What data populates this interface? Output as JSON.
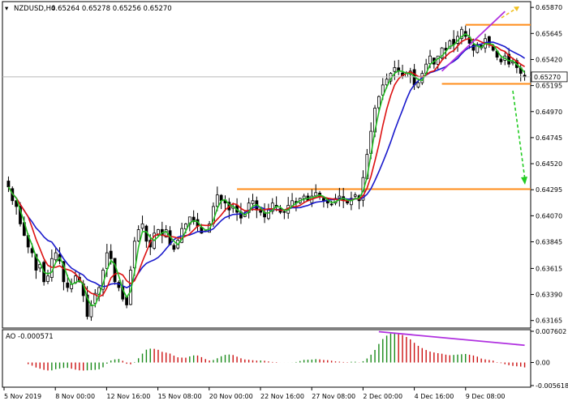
{
  "chart_data": {
    "type": "candlestick",
    "symbol_header": "NZDUSD,H4",
    "header_values": "0.65264 0.65278 0.65256 0.65270",
    "price_axis": {
      "ticks": [
        "0.65870",
        "0.65645",
        "0.65420",
        "0.65195",
        "0.64970",
        "0.64745",
        "0.64520",
        "0.64295",
        "0.64070",
        "0.63845",
        "0.63615",
        "0.63390",
        "0.63165"
      ],
      "range": [
        0.631,
        0.6592
      ],
      "current_price": 0.6527,
      "current_label": "0.65270"
    },
    "time_axis": {
      "ticks": [
        "5 Nov 2019",
        "8 Nov 00:00",
        "12 Nov 16:00",
        "15 Nov 08:00",
        "20 Nov 00:00",
        "22 Nov 16:00",
        "27 Nov 08:00",
        "2 Dec 00:00",
        "4 Dec 16:00",
        "9 Dec 08:00"
      ]
    },
    "levels": [
      {
        "name": "resistance",
        "price": 0.6572,
        "color": "#ff8c1a"
      },
      {
        "name": "support-upper",
        "price": 0.6521,
        "color": "#ff8c1a"
      },
      {
        "name": "support-lower",
        "price": 0.643,
        "color": "#ff8c1a"
      }
    ],
    "closes": [
      0.6432,
      0.642,
      0.6415,
      0.64,
      0.639,
      0.638,
      0.6375,
      0.636,
      0.6365,
      0.635,
      0.6355,
      0.637,
      0.6375,
      0.6368,
      0.635,
      0.6345,
      0.6348,
      0.6355,
      0.635,
      0.6338,
      0.632,
      0.633,
      0.634,
      0.6345,
      0.636,
      0.6375,
      0.637,
      0.635,
      0.6345,
      0.6335,
      0.633,
      0.636,
      0.6385,
      0.6395,
      0.64,
      0.6385,
      0.638,
      0.6392,
      0.6395,
      0.639,
      0.6395,
      0.6382,
      0.6378,
      0.6386,
      0.6396,
      0.64,
      0.6406,
      0.6402,
      0.6398,
      0.6392,
      0.6394,
      0.64,
      0.6415,
      0.6425,
      0.642,
      0.6418,
      0.6412,
      0.6415,
      0.641,
      0.6405,
      0.6408,
      0.6418,
      0.642,
      0.6412,
      0.641,
      0.6406,
      0.6412,
      0.6418,
      0.6415,
      0.641,
      0.641,
      0.6416,
      0.642,
      0.6418,
      0.6422,
      0.6424,
      0.642,
      0.6424,
      0.6427,
      0.6424,
      0.642,
      0.6418,
      0.6417,
      0.6422,
      0.6424,
      0.642,
      0.6418,
      0.6422,
      0.6425,
      0.642,
      0.644,
      0.646,
      0.648,
      0.65,
      0.651,
      0.652,
      0.6525,
      0.653,
      0.6535,
      0.6532,
      0.6528,
      0.653,
      0.6532,
      0.652,
      0.6522,
      0.653,
      0.6538,
      0.6545,
      0.6538,
      0.6545,
      0.6552,
      0.655,
      0.6558,
      0.6555,
      0.6562,
      0.6568,
      0.6562,
      0.6556,
      0.655,
      0.6555,
      0.6552,
      0.656,
      0.6555,
      0.655,
      0.6544,
      0.654,
      0.6545,
      0.6538,
      0.654,
      0.6535,
      0.653,
      0.6527
    ],
    "indicator_colors": {
      "fast_ma": "#22bb22",
      "slow_ma": "#dd1111",
      "baseline": "#1a1acc",
      "divergence": "#b030e0",
      "arrow_up": "#f0c020",
      "arrow_down": "#22cc22",
      "level": "#ff8c1a"
    },
    "oscillator": {
      "label": "AO -0.000571",
      "ticks": [
        "0.007602",
        "0.00",
        "-0.005618"
      ],
      "range": [
        -0.005618,
        0.007602
      ],
      "up_color": "#1a8a1a",
      "down_color": "#cc1111"
    }
  }
}
